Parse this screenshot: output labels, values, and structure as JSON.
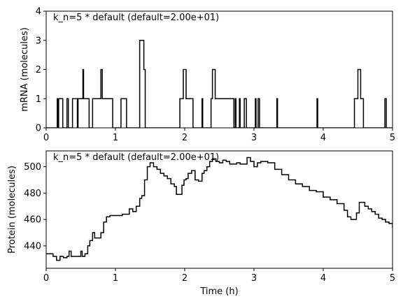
{
  "chart_data": [
    {
      "type": "line",
      "step": true,
      "annotation": "k_n=5 * default (default=2.00e+01)",
      "xlabel": "",
      "ylabel": "mRNA (molecules)",
      "xlim": [
        0,
        5
      ],
      "ylim": [
        0,
        4
      ],
      "xticks": [
        "0",
        "1",
        "2",
        "3",
        "4",
        "5"
      ],
      "yticks": [
        "0",
        "1",
        "2",
        "3",
        "4"
      ],
      "line_color": "#000000",
      "grid": false,
      "series": [
        {
          "x": [
            0,
            0.16,
            0.17,
            0.18,
            0.19,
            0.24,
            0.3,
            0.32,
            0.38,
            0.45,
            0.46,
            0.53,
            0.54,
            0.58,
            0.62,
            0.67,
            0.78,
            0.79,
            0.81,
            0.83,
            0.96,
            1.08,
            1.16,
            1.35,
            1.41,
            1.43,
            1.46,
            1.93,
            1.98,
            2.02,
            2.12,
            2.25,
            2.26,
            2.38,
            2.4,
            2.44,
            2.71,
            2.73,
            2.74,
            2.79,
            2.8,
            2.86,
            2.89,
            3.02,
            3.03,
            3.06,
            3.08,
            3.09,
            3.33,
            3.34,
            3.91,
            3.92,
            4.45,
            4.5,
            4.54,
            4.58,
            4.89,
            4.91,
            4.92
          ],
          "y": [
            0,
            1,
            0,
            1,
            1,
            0,
            1,
            0,
            1,
            0,
            1,
            2,
            1,
            1,
            0,
            1,
            1,
            2,
            1,
            1,
            0,
            1,
            0,
            3,
            2,
            0,
            0,
            1,
            2,
            1,
            0,
            1,
            0,
            1,
            2,
            1,
            0,
            1,
            0,
            1,
            0,
            1,
            0,
            1,
            0,
            1,
            0,
            0,
            1,
            0,
            1,
            0,
            1,
            2,
            1,
            0,
            1,
            0,
            0
          ]
        }
      ]
    },
    {
      "type": "line",
      "step": true,
      "annotation": "k_n=5 * default (default=2.00e+01)",
      "xlabel": "Time (h)",
      "ylabel": "Protein (molecules)",
      "xlim": [
        0,
        5
      ],
      "ylim": [
        423,
        512
      ],
      "xticks": [
        "0",
        "1",
        "2",
        "3",
        "4",
        "5"
      ],
      "yticks": [
        "440",
        "460",
        "480",
        "500"
      ],
      "line_color": "#000000",
      "grid": false,
      "series": [
        {
          "x": [
            0,
            0.05,
            0.1,
            0.15,
            0.2,
            0.25,
            0.3,
            0.33,
            0.36,
            0.4,
            0.45,
            0.5,
            0.52,
            0.56,
            0.6,
            0.63,
            0.67,
            0.7,
            0.75,
            0.79,
            0.83,
            0.87,
            0.92,
            1.0,
            1.05,
            1.1,
            1.15,
            1.2,
            1.25,
            1.3,
            1.35,
            1.38,
            1.42,
            1.46,
            1.5,
            1.55,
            1.6,
            1.65,
            1.7,
            1.75,
            1.8,
            1.85,
            1.88,
            1.92,
            1.96,
            1.99,
            2.02,
            2.05,
            2.1,
            2.15,
            2.2,
            2.25,
            2.28,
            2.32,
            2.36,
            2.4,
            2.45,
            2.5,
            2.55,
            2.6,
            2.65,
            2.7,
            2.75,
            2.8,
            2.85,
            2.9,
            2.95,
            3.0,
            3.05,
            3.1,
            3.15,
            3.2,
            3.3,
            3.4,
            3.5,
            3.6,
            3.7,
            3.8,
            3.9,
            4.0,
            4.1,
            4.2,
            4.3,
            4.35,
            4.4,
            4.45,
            4.48,
            4.52,
            4.56,
            4.6,
            4.65,
            4.7,
            4.75,
            4.8,
            4.85,
            4.9,
            4.95,
            5.0
          ],
          "y": [
            434,
            434,
            432,
            429,
            432,
            431,
            432,
            436,
            432,
            432,
            432,
            436,
            432,
            434,
            440,
            444,
            450,
            446,
            446,
            450,
            458,
            462,
            463,
            463,
            463,
            464,
            464,
            468,
            466,
            470,
            476,
            478,
            490,
            500,
            503,
            500,
            498,
            495,
            493,
            491,
            487,
            485,
            479,
            479,
            486,
            490,
            491,
            495,
            497,
            490,
            489,
            495,
            497,
            500,
            504,
            506,
            504,
            503,
            505,
            504,
            502,
            502,
            503,
            502,
            502,
            507,
            504,
            500,
            503,
            504,
            504,
            503,
            498,
            494,
            490,
            487,
            485,
            482,
            481,
            477,
            475,
            472,
            467,
            462,
            460,
            460,
            465,
            473,
            473,
            470,
            468,
            466,
            464,
            461,
            460,
            458,
            457,
            454
          ]
        }
      ]
    }
  ]
}
